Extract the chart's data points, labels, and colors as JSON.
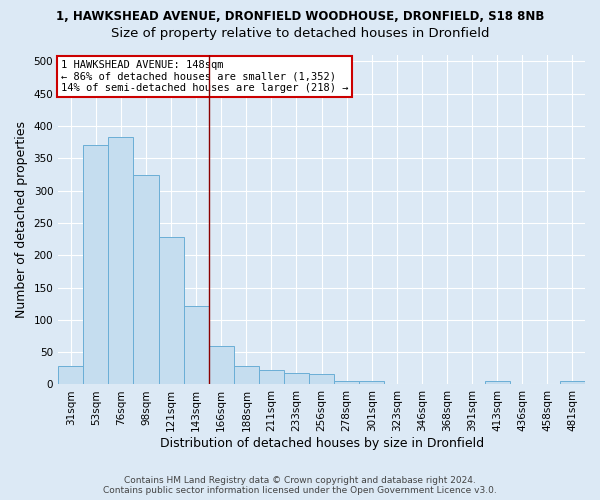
{
  "title_line1": "1, HAWKSHEAD AVENUE, DRONFIELD WOODHOUSE, DRONFIELD, S18 8NB",
  "title_line2": "Size of property relative to detached houses in Dronfield",
  "xlabel": "Distribution of detached houses by size in Dronfield",
  "ylabel": "Number of detached properties",
  "categories": [
    "31sqm",
    "53sqm",
    "76sqm",
    "98sqm",
    "121sqm",
    "143sqm",
    "166sqm",
    "188sqm",
    "211sqm",
    "233sqm",
    "256sqm",
    "278sqm",
    "301sqm",
    "323sqm",
    "346sqm",
    "368sqm",
    "391sqm",
    "413sqm",
    "436sqm",
    "458sqm",
    "481sqm"
  ],
  "values": [
    28,
    370,
    383,
    325,
    228,
    121,
    59,
    28,
    23,
    18,
    16,
    6,
    5,
    1,
    1,
    1,
    1,
    5,
    1,
    1,
    5
  ],
  "bar_color": "#c5ddef",
  "bar_edge_color": "#6aaed6",
  "background_color": "#dce9f5",
  "vline_x": 5.5,
  "vline_color": "#8b0000",
  "annotation_text": "1 HAWKSHEAD AVENUE: 148sqm\n← 86% of detached houses are smaller (1,352)\n14% of semi-detached houses are larger (218) →",
  "annotation_box_color": "#ffffff",
  "annotation_box_edge_color": "#cc0000",
  "ylim": [
    0,
    510
  ],
  "yticks": [
    0,
    50,
    100,
    150,
    200,
    250,
    300,
    350,
    400,
    450,
    500
  ],
  "footer_line1": "Contains HM Land Registry data © Crown copyright and database right 2024.",
  "footer_line2": "Contains public sector information licensed under the Open Government Licence v3.0.",
  "title1_fontsize": 8.5,
  "title2_fontsize": 9.5,
  "axis_label_fontsize": 9,
  "tick_fontsize": 7.5,
  "annotation_fontsize": 7.5,
  "footer_fontsize": 6.5
}
